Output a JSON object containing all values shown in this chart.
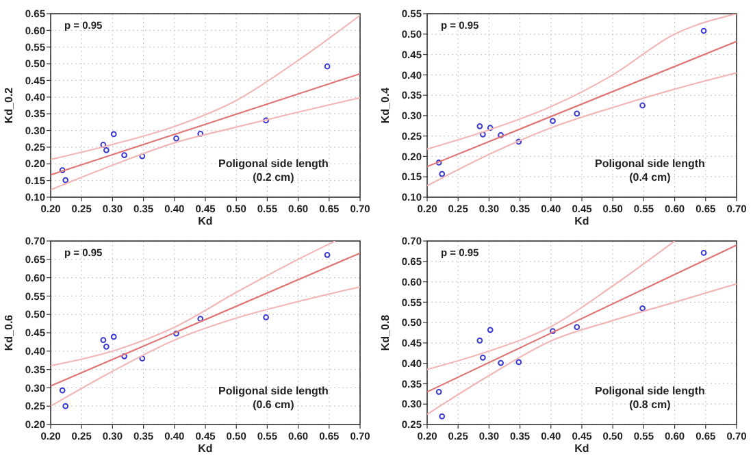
{
  "chart_data": [
    {
      "type": "scatter",
      "xlabel": "Kd",
      "ylabel": "Kd_0.2",
      "annotations": [
        "p = 0.95",
        "Poligonal side length\n(0.2 cm)"
      ],
      "grid": true,
      "xlim": [
        0.2,
        0.7
      ],
      "xticks": [
        {
          "value": 0.2,
          "label": "0.20"
        },
        {
          "value": 0.25,
          "label": "0.25"
        },
        {
          "value": 0.3,
          "label": "0.30"
        },
        {
          "value": 0.35,
          "label": "0.35"
        },
        {
          "value": 0.4,
          "label": "0.40"
        },
        {
          "value": 0.45,
          "label": "0.45"
        },
        {
          "value": 0.5,
          "label": "0.50"
        },
        {
          "value": 0.55,
          "label": "0.55"
        },
        {
          "value": 0.6,
          "label": "0.60"
        },
        {
          "value": 0.65,
          "label": "0.65"
        },
        {
          "value": 0.7,
          "label": "0.70"
        }
      ],
      "ylim": [
        0.1,
        0.65
      ],
      "yticks": [
        {
          "value": 0.1,
          "label": "0.10"
        },
        {
          "value": 0.15,
          "label": "0.15"
        },
        {
          "value": 0.2,
          "label": "0.20"
        },
        {
          "value": 0.25,
          "label": "0.25"
        },
        {
          "value": 0.3,
          "label": "0.30"
        },
        {
          "value": 0.35,
          "label": "0.35"
        },
        {
          "value": 0.4,
          "label": "0.40"
        },
        {
          "value": 0.45,
          "label": "0.45"
        },
        {
          "value": 0.5,
          "label": "0.50"
        },
        {
          "value": 0.55,
          "label": "0.55"
        },
        {
          "value": 0.6,
          "label": "0.60"
        },
        {
          "value": 0.65,
          "label": "0.65"
        }
      ],
      "series": [
        {
          "marker": "circle",
          "color": "#3b3bd0",
          "x": [
            0.219,
            0.224,
            0.285,
            0.29,
            0.302,
            0.319,
            0.348,
            0.403,
            0.442,
            0.548,
            0.647
          ],
          "values": [
            0.181,
            0.151,
            0.257,
            0.241,
            0.289,
            0.226,
            0.223,
            0.276,
            0.29,
            0.33,
            0.492
          ]
        },
        {
          "type": "line",
          "marker": "none",
          "color": "#e07575",
          "x": [
            0.2,
            0.7
          ],
          "values": [
            0.167,
            0.47
          ]
        },
        {
          "type": "line",
          "marker": "none",
          "color": "#f2b8b8",
          "x": [
            0.2,
            0.3,
            0.4,
            0.5,
            0.6,
            0.7
          ],
          "values": [
            0.213,
            0.258,
            0.312,
            0.39,
            0.51,
            0.645
          ]
        },
        {
          "type": "line",
          "marker": "none",
          "color": "#f2b8b8",
          "x": [
            0.2,
            0.3,
            0.4,
            0.5,
            0.6,
            0.7
          ],
          "values": [
            0.122,
            0.196,
            0.263,
            0.31,
            0.355,
            0.398
          ]
        }
      ]
    },
    {
      "type": "scatter",
      "xlabel": "Kd",
      "ylabel": "Kd_0.4",
      "annotations": [
        "p = 0.95",
        "Poligonal side length\n(0.4 cm)"
      ],
      "grid": true,
      "xlim": [
        0.2,
        0.7
      ],
      "xticks": [
        {
          "value": 0.2,
          "label": "0.20"
        },
        {
          "value": 0.25,
          "label": "0.25"
        },
        {
          "value": 0.3,
          "label": "0.30"
        },
        {
          "value": 0.35,
          "label": "0.35"
        },
        {
          "value": 0.4,
          "label": "0.40"
        },
        {
          "value": 0.45,
          "label": "0.45"
        },
        {
          "value": 0.5,
          "label": "0.50"
        },
        {
          "value": 0.55,
          "label": "0.55"
        },
        {
          "value": 0.6,
          "label": "0.60"
        },
        {
          "value": 0.65,
          "label": "0.65"
        },
        {
          "value": 0.7,
          "label": "0.70"
        }
      ],
      "ylim": [
        0.1,
        0.55
      ],
      "yticks": [
        {
          "value": 0.1,
          "label": "0.10"
        },
        {
          "value": 0.15,
          "label": "0.15"
        },
        {
          "value": 0.2,
          "label": "0.20"
        },
        {
          "value": 0.25,
          "label": "0.25"
        },
        {
          "value": 0.3,
          "label": "0.30"
        },
        {
          "value": 0.35,
          "label": "0.35"
        },
        {
          "value": 0.4,
          "label": "0.40"
        },
        {
          "value": 0.45,
          "label": "0.45"
        },
        {
          "value": 0.5,
          "label": "0.50"
        },
        {
          "value": 0.55,
          "label": "0.55"
        }
      ],
      "series": [
        {
          "marker": "circle",
          "color": "#3b3bd0",
          "x": [
            0.219,
            0.224,
            0.285,
            0.29,
            0.302,
            0.319,
            0.348,
            0.403,
            0.442,
            0.548,
            0.647
          ],
          "values": [
            0.185,
            0.157,
            0.274,
            0.254,
            0.27,
            0.252,
            0.236,
            0.287,
            0.305,
            0.325,
            0.508
          ]
        },
        {
          "type": "line",
          "marker": "none",
          "color": "#e07575",
          "x": [
            0.2,
            0.7
          ],
          "values": [
            0.175,
            0.482
          ]
        },
        {
          "type": "line",
          "marker": "none",
          "color": "#f2b8b8",
          "x": [
            0.2,
            0.3,
            0.4,
            0.5,
            0.6,
            0.7
          ],
          "values": [
            0.218,
            0.265,
            0.322,
            0.4,
            0.5,
            0.55
          ]
        },
        {
          "type": "line",
          "marker": "none",
          "color": "#f2b8b8",
          "x": [
            0.2,
            0.3,
            0.4,
            0.5,
            0.6,
            0.7
          ],
          "values": [
            0.128,
            0.205,
            0.27,
            0.32,
            0.365,
            0.405
          ]
        }
      ]
    },
    {
      "type": "scatter",
      "xlabel": "Kd",
      "ylabel": "Kd_0.6",
      "annotations": [
        "p = 0.95",
        "Poligonal side length\n(0.6 cm)"
      ],
      "grid": true,
      "xlim": [
        0.2,
        0.7
      ],
      "xticks": [
        {
          "value": 0.2,
          "label": "0.20"
        },
        {
          "value": 0.25,
          "label": "0.25"
        },
        {
          "value": 0.3,
          "label": "0.30"
        },
        {
          "value": 0.35,
          "label": "0.35"
        },
        {
          "value": 0.4,
          "label": "0.40"
        },
        {
          "value": 0.45,
          "label": "0.45"
        },
        {
          "value": 0.5,
          "label": "0.50"
        },
        {
          "value": 0.55,
          "label": "0.55"
        },
        {
          "value": 0.6,
          "label": "0.60"
        },
        {
          "value": 0.65,
          "label": "0.65"
        },
        {
          "value": 0.7,
          "label": "0.70"
        }
      ],
      "ylim": [
        0.2,
        0.7
      ],
      "yticks": [
        {
          "value": 0.2,
          "label": "0.20"
        },
        {
          "value": 0.25,
          "label": "0.25"
        },
        {
          "value": 0.3,
          "label": "0.30"
        },
        {
          "value": 0.35,
          "label": "0.35"
        },
        {
          "value": 0.4,
          "label": "0.40"
        },
        {
          "value": 0.45,
          "label": "0.45"
        },
        {
          "value": 0.5,
          "label": "0.50"
        },
        {
          "value": 0.55,
          "label": "0.55"
        },
        {
          "value": 0.6,
          "label": "0.60"
        },
        {
          "value": 0.65,
          "label": "0.65"
        },
        {
          "value": 0.7,
          "label": "0.70"
        }
      ],
      "series": [
        {
          "marker": "circle",
          "color": "#3b3bd0",
          "x": [
            0.219,
            0.224,
            0.285,
            0.29,
            0.302,
            0.319,
            0.348,
            0.403,
            0.442,
            0.548,
            0.647
          ],
          "values": [
            0.293,
            0.25,
            0.43,
            0.412,
            0.439,
            0.386,
            0.38,
            0.448,
            0.488,
            0.492,
            0.662
          ]
        },
        {
          "type": "line",
          "marker": "none",
          "color": "#e07575",
          "x": [
            0.2,
            0.7
          ],
          "values": [
            0.305,
            0.667
          ]
        },
        {
          "type": "line",
          "marker": "none",
          "color": "#f2b8b8",
          "x": [
            0.2,
            0.3,
            0.4,
            0.5,
            0.6,
            0.66
          ],
          "values": [
            0.36,
            0.4,
            0.465,
            0.56,
            0.65,
            0.7
          ]
        },
        {
          "type": "line",
          "marker": "none",
          "color": "#f2b8b8",
          "x": [
            0.2,
            0.3,
            0.4,
            0.5,
            0.6,
            0.7
          ],
          "values": [
            0.25,
            0.345,
            0.43,
            0.49,
            0.535,
            0.575
          ]
        }
      ]
    },
    {
      "type": "scatter",
      "xlabel": "Kd",
      "ylabel": "Kd_0.8",
      "annotations": [
        "p = 0.95",
        "Poligonal side length\n(0.8 cm)"
      ],
      "grid": true,
      "xlim": [
        0.2,
        0.7
      ],
      "xticks": [
        {
          "value": 0.2,
          "label": "0.20"
        },
        {
          "value": 0.25,
          "label": "0.25"
        },
        {
          "value": 0.3,
          "label": "0.30"
        },
        {
          "value": 0.35,
          "label": "0.35"
        },
        {
          "value": 0.4,
          "label": "0.40"
        },
        {
          "value": 0.45,
          "label": "0.45"
        },
        {
          "value": 0.5,
          "label": "0.50"
        },
        {
          "value": 0.55,
          "label": "0.55"
        },
        {
          "value": 0.6,
          "label": "0.60"
        },
        {
          "value": 0.65,
          "label": "0.65"
        },
        {
          "value": 0.7,
          "label": "0.70"
        }
      ],
      "ylim": [
        0.25,
        0.7
      ],
      "yticks": [
        {
          "value": 0.25,
          "label": "0.25"
        },
        {
          "value": 0.3,
          "label": "0.30"
        },
        {
          "value": 0.35,
          "label": "0.35"
        },
        {
          "value": 0.4,
          "label": "0.40"
        },
        {
          "value": 0.45,
          "label": "0.45"
        },
        {
          "value": 0.5,
          "label": "0.50"
        },
        {
          "value": 0.55,
          "label": "0.55"
        },
        {
          "value": 0.6,
          "label": "0.60"
        },
        {
          "value": 0.65,
          "label": "0.65"
        },
        {
          "value": 0.7,
          "label": "0.70"
        }
      ],
      "series": [
        {
          "marker": "circle",
          "color": "#3b3bd0",
          "x": [
            0.219,
            0.224,
            0.285,
            0.29,
            0.302,
            0.319,
            0.348,
            0.403,
            0.442,
            0.548,
            0.647
          ],
          "values": [
            0.33,
            0.27,
            0.456,
            0.414,
            0.482,
            0.401,
            0.403,
            0.479,
            0.489,
            0.535,
            0.671
          ]
        },
        {
          "type": "line",
          "marker": "none",
          "color": "#e07575",
          "x": [
            0.2,
            0.7
          ],
          "values": [
            0.33,
            0.69
          ]
        },
        {
          "type": "line",
          "marker": "none",
          "color": "#f2b8b8",
          "x": [
            0.2,
            0.3,
            0.4,
            0.5,
            0.6
          ],
          "values": [
            0.385,
            0.43,
            0.49,
            0.59,
            0.7
          ]
        },
        {
          "type": "line",
          "marker": "none",
          "color": "#f2b8b8",
          "x": [
            0.2,
            0.3,
            0.4,
            0.5,
            0.6,
            0.7
          ],
          "values": [
            0.275,
            0.37,
            0.455,
            0.505,
            0.55,
            0.595
          ]
        }
      ]
    }
  ]
}
